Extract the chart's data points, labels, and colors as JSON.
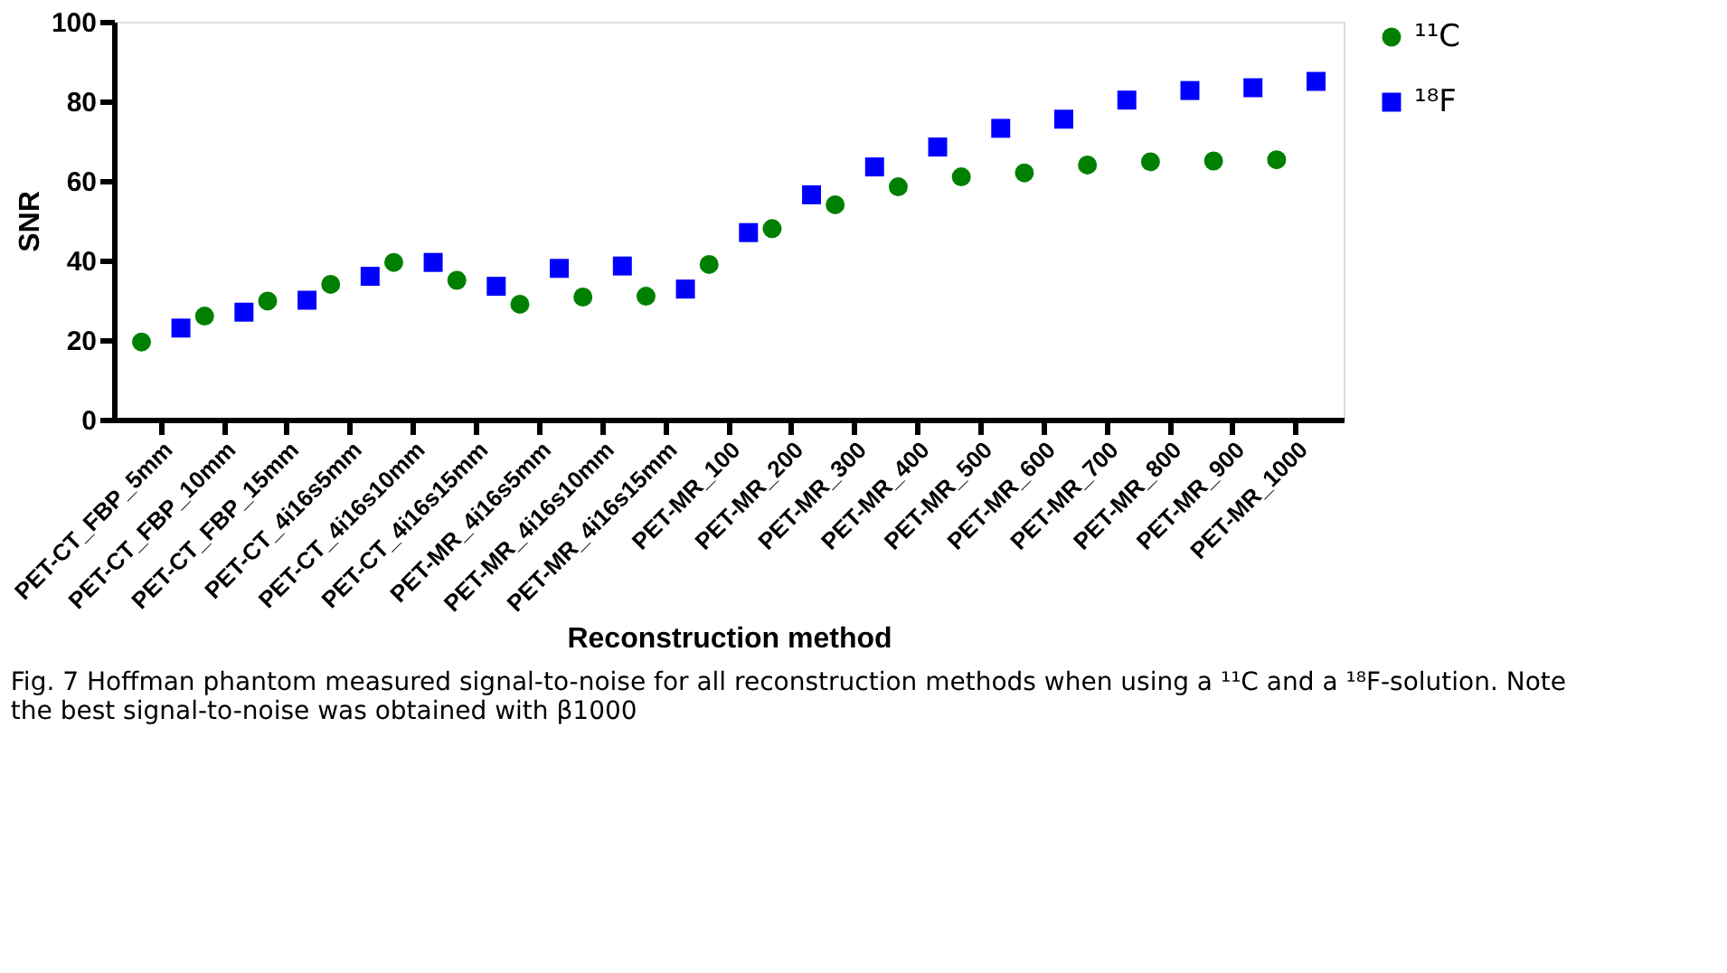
{
  "chart_data": {
    "type": "scatter",
    "categories": [
      "PET-CT_FBP_5mm",
      "PET-CT_FBP_10mm",
      "PET-CT_FBP_15mm",
      "PET-CT_4i16s5mm",
      "PET-CT_4i16s10mm",
      "PET-CT_4i16s15mm",
      "PET-MR_4i16s5mm",
      "PET-MR_4i16s10mm",
      "PET-MR_4i16s15mm",
      "PET-MR_100",
      "PET-MR_200",
      "PET-MR_300",
      "PET-MR_400",
      "PET-MR_500",
      "PET-MR_600",
      "PET-MR_700",
      "PET-MR_800",
      "PET-MR_900",
      "PET-MR_1000"
    ],
    "series": [
      {
        "name": "¹¹C",
        "color": "#008000",
        "marker": "circle",
        "values": [
          19.5,
          26,
          29.8,
          34,
          39.5,
          35,
          29,
          30.8,
          31,
          39,
          48,
          54,
          58.5,
          61,
          62,
          64,
          64.8,
          65,
          65.3
        ]
      },
      {
        "name": "¹⁸F",
        "color": "#0000ff",
        "marker": "square",
        "values": [
          23,
          27,
          30,
          36,
          39.5,
          33.5,
          38,
          38.6,
          32.8,
          47,
          56.5,
          63.5,
          68.5,
          73.2,
          75.5,
          80.3,
          82.7,
          83.4,
          85
        ]
      }
    ],
    "xlabel": "Reconstruction method",
    "ylabel": "SNR",
    "ylim": [
      0,
      100
    ],
    "yticks": [
      0,
      20,
      40,
      60,
      80,
      100
    ],
    "grid": false,
    "legend": "top right",
    "annotations": [
      "Fig. 7 Hoffman phantom measured signal-to-noise for all reconstruction methods when using a ¹¹C and a ¹⁸F-solution. Note the best signal-to-noise was obtained with β1000"
    ]
  }
}
